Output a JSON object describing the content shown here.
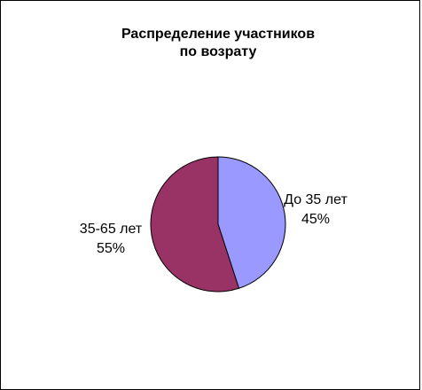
{
  "chart_data": {
    "type": "pie",
    "title_lines": [
      "Распределение участников",
      "по возрату"
    ],
    "slices": [
      {
        "label": "До 35 лет",
        "value": 45,
        "value_label": "45%",
        "color": "#9999FF"
      },
      {
        "label": "35-65 лет",
        "value": 55,
        "value_label": "55%",
        "color": "#993366"
      }
    ],
    "legend": "none",
    "slice_border_color": "#000000",
    "start": "top",
    "direction": "clockwise"
  }
}
